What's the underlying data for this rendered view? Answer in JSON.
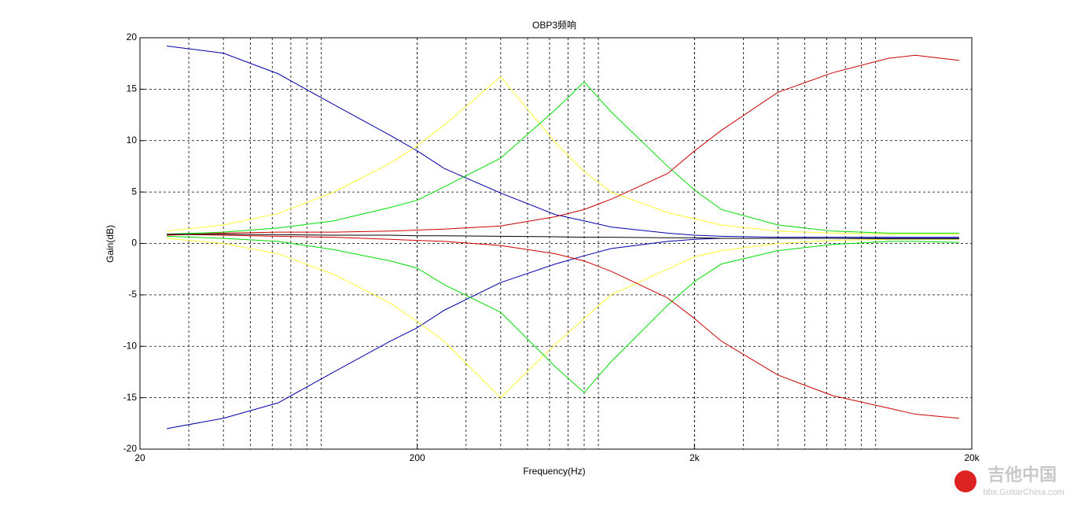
{
  "chart_data": {
    "type": "line",
    "title": "OBP3频响",
    "x_label": "Frequency(Hz)",
    "y_label": "Gain(dB)",
    "x": [
      25,
      40,
      63,
      100,
      160,
      200,
      250,
      400,
      630,
      800,
      1000,
      1600,
      2000,
      2500,
      4000,
      6300,
      10000,
      12500,
      18000
    ],
    "series": [
      {
        "color": "#0000aa",
        "values": [
          19.2,
          18.5,
          16.5,
          13.5,
          10.5,
          9,
          7.3,
          4.9,
          2.8,
          2.2,
          1.6,
          1.0,
          0.8,
          0.7,
          0.6,
          0.6,
          0.6,
          0.6,
          0.6
        ]
      },
      {
        "color": "#0000aa",
        "values": [
          -18,
          -17,
          -15.5,
          -12.5,
          -9.5,
          -8.2,
          -6.5,
          -3.8,
          -2,
          -1.2,
          -0.5,
          0.2,
          0.4,
          0.5,
          0.5,
          0.5,
          0.5,
          0.5,
          0.5
        ]
      },
      {
        "color": "#ffff33",
        "values": [
          1.2,
          1.8,
          2.9,
          5,
          7.8,
          9.5,
          11.5,
          16.2,
          9.8,
          7,
          5,
          3,
          2.4,
          1.8,
          1.2,
          1,
          0.9,
          0.9,
          0.9
        ]
      },
      {
        "color": "#ffff33",
        "values": [
          0.5,
          0,
          -1,
          -3,
          -5.8,
          -7.6,
          -9.5,
          -15,
          -9.8,
          -7.3,
          -5,
          -2.5,
          -1.3,
          -0.7,
          0,
          0.3,
          0.4,
          0.4,
          0.4
        ]
      },
      {
        "color": "#00dd00",
        "values": [
          0.9,
          1.1,
          1.5,
          2.2,
          3.5,
          4.2,
          5.5,
          8.3,
          13,
          15.7,
          12.8,
          7.5,
          5.2,
          3.3,
          1.8,
          1.2,
          1,
          1,
          1
        ]
      },
      {
        "color": "#00dd00",
        "values": [
          0.7,
          0.5,
          0.2,
          -0.6,
          -1.7,
          -2.4,
          -4,
          -6.7,
          -12,
          -14.5,
          -11.5,
          -6,
          -3.7,
          -2,
          -0.7,
          -0.1,
          0.2,
          0.2,
          0.1
        ]
      },
      {
        "color": "#cc0000",
        "values": [
          0.8,
          1,
          1.1,
          1.1,
          1.2,
          1.3,
          1.4,
          1.7,
          2.6,
          3.3,
          4.3,
          6.8,
          9,
          11,
          14.7,
          16.6,
          18,
          18.3,
          17.8
        ]
      },
      {
        "color": "#cc0000",
        "values": [
          0.9,
          0.8,
          0.7,
          0.6,
          0.4,
          0.3,
          0.2,
          -0.2,
          -1,
          -1.7,
          -2.7,
          -5.3,
          -7.3,
          -9.5,
          -12.8,
          -14.8,
          -16,
          -16.6,
          -17
        ]
      },
      {
        "color": "#000000",
        "values": [
          0.9,
          0.9,
          0.85,
          0.8,
          0.8,
          0.75,
          0.75,
          0.7,
          0.65,
          0.6,
          0.6,
          0.55,
          0.55,
          0.5,
          0.5,
          0.5,
          0.45,
          0.45,
          0.45
        ]
      }
    ],
    "xlim": [
      20,
      20000
    ],
    "ylim": [
      -20,
      20
    ],
    "xscale": "log",
    "xticks": [
      20,
      200,
      {
        "value": 2000,
        "label": "2k"
      },
      {
        "value": 20000,
        "label": "20k"
      }
    ],
    "yticks": [
      -20,
      -15,
      -10,
      -5,
      0,
      5,
      10,
      15,
      20
    ],
    "grid": true
  },
  "watermark": {
    "name": "吉他中国",
    "url": "bbs.GuitarChina.com"
  }
}
